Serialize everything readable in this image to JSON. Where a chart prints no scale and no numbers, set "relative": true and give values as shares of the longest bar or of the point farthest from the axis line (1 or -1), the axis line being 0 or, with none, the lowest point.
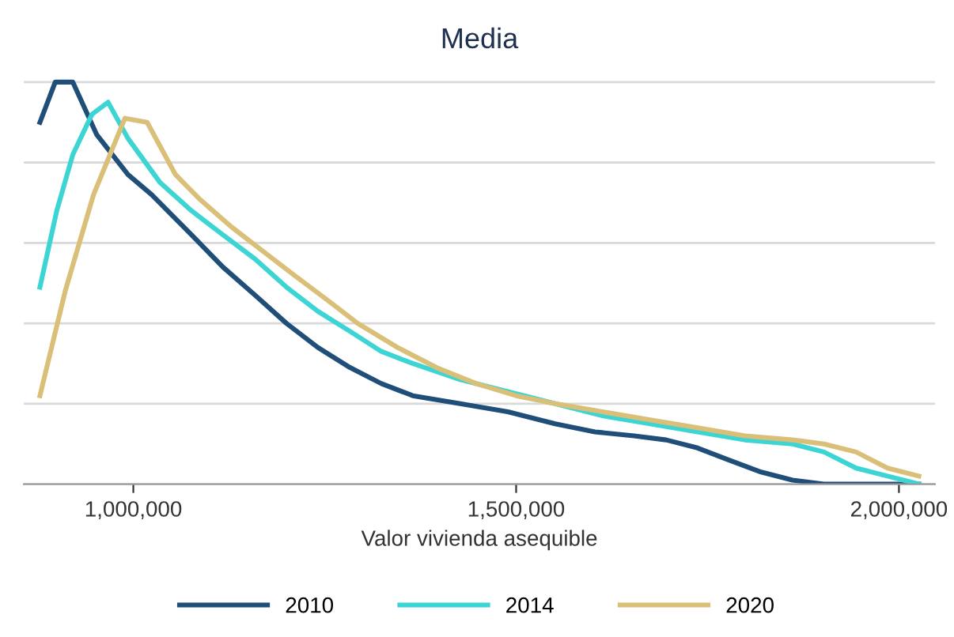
{
  "chart_data": {
    "type": "line",
    "title": "Media",
    "xlabel": "Valor vivienda asequible",
    "relative": true,
    "grid": "y",
    "legend": "bottom",
    "marker": "none",
    "line_style": "solid",
    "xlim": [
      857000,
      2047000
    ],
    "xticks": [
      {
        "value": 1000000,
        "label": "1,000,000"
      },
      {
        "value": 1500000,
        "label": "1,500,000"
      },
      {
        "value": 2000000,
        "label": "2,000,000"
      }
    ],
    "series": [
      {
        "name": "2010",
        "color": "#1f4e79",
        "x": [
          878000,
          898000,
          921000,
          952000,
          993000,
          1024000,
          1076000,
          1117000,
          1159000,
          1200000,
          1241000,
          1283000,
          1324000,
          1365000,
          1427000,
          1489000,
          1551000,
          1603000,
          1654000,
          1696000,
          1737000,
          1778000,
          1820000,
          1861000,
          1902000,
          1944000,
          1985000,
          2026000
        ],
        "values": [
          0.9,
          1.0,
          1.0,
          0.87,
          0.77,
          0.72,
          0.62,
          0.54,
          0.47,
          0.4,
          0.34,
          0.29,
          0.25,
          0.22,
          0.2,
          0.18,
          0.15,
          0.13,
          0.12,
          0.11,
          0.09,
          0.06,
          0.03,
          0.01,
          0.0,
          0.0,
          0.0,
          0.0
        ]
      },
      {
        "name": "2014",
        "color": "#3dd4d4",
        "x": [
          878000,
          900000,
          921000,
          946000,
          967000,
          993000,
          1035000,
          1076000,
          1117000,
          1159000,
          1200000,
          1241000,
          1283000,
          1324000,
          1365000,
          1427000,
          1489000,
          1551000,
          1613000,
          1675000,
          1737000,
          1799000,
          1861000,
          1902000,
          1944000,
          1985000,
          2026000
        ],
        "values": [
          0.49,
          0.68,
          0.82,
          0.92,
          0.95,
          0.86,
          0.75,
          0.68,
          0.62,
          0.56,
          0.49,
          0.43,
          0.38,
          0.33,
          0.3,
          0.26,
          0.23,
          0.2,
          0.17,
          0.15,
          0.13,
          0.11,
          0.1,
          0.08,
          0.04,
          0.02,
          0.0
        ]
      },
      {
        "name": "2020",
        "color": "#d9bf77",
        "x": [
          878000,
          911000,
          948000,
          989000,
          1018000,
          1055000,
          1086000,
          1128000,
          1169000,
          1210000,
          1252000,
          1293000,
          1345000,
          1396000,
          1448000,
          1500000,
          1551000,
          1613000,
          1675000,
          1737000,
          1799000,
          1861000,
          1902000,
          1944000,
          1985000,
          2026000
        ],
        "values": [
          0.22,
          0.48,
          0.72,
          0.91,
          0.9,
          0.77,
          0.71,
          0.64,
          0.58,
          0.52,
          0.46,
          0.4,
          0.34,
          0.29,
          0.25,
          0.22,
          0.2,
          0.18,
          0.16,
          0.14,
          0.12,
          0.11,
          0.1,
          0.08,
          0.04,
          0.02
        ]
      }
    ]
  }
}
